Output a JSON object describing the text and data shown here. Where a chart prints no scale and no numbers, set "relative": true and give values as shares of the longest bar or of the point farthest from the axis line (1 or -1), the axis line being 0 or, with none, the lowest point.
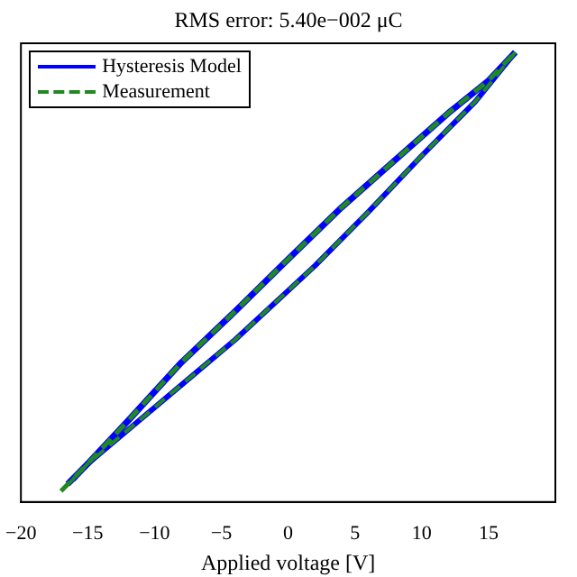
{
  "chart_data": {
    "type": "line",
    "title": "RMS error: 5.40e−002 μC",
    "xlabel": "Applied voltage [V]",
    "relative": true,
    "xlim": [
      -20,
      20
    ],
    "xticks": [
      {
        "value": -20,
        "label": "−20"
      },
      {
        "value": -15,
        "label": "−15"
      },
      {
        "value": -10,
        "label": "−10"
      },
      {
        "value": -5,
        "label": "−5"
      },
      0,
      5,
      10,
      15,
      {
        "value": 20,
        "label": null
      }
    ],
    "grid": false,
    "legend": "top left",
    "marker": "none",
    "series": [
      {
        "name": "Hysteresis Model",
        "color": "#0000ff",
        "line_style": "solid",
        "x": [
          -16.5,
          -15,
          -12,
          -8,
          -4,
          0,
          4,
          8,
          12,
          15,
          17
        ],
        "values": [
          0.04,
          0.085,
          0.18,
          0.31,
          0.423,
          0.54,
          0.655,
          0.76,
          0.865,
          0.937,
          1
        ]
      },
      {
        "color": "#0000ff",
        "line_style": "solid",
        "x": [
          -16.1,
          -15,
          -12,
          -8,
          -4,
          0,
          2,
          6,
          10,
          14,
          17
        ],
        "values": [
          0.05,
          0.085,
          0.16,
          0.26,
          0.36,
          0.47,
          0.525,
          0.645,
          0.77,
          0.89,
          1
        ]
      },
      {
        "name": "Measurement",
        "color": "#1f8a1f",
        "line_style": "dashed",
        "x": [
          -17,
          -15,
          -12,
          -8,
          -4,
          0,
          4,
          8,
          12,
          15,
          17
        ],
        "values": [
          0.024,
          0.085,
          0.18,
          0.31,
          0.423,
          0.54,
          0.655,
          0.76,
          0.865,
          0.937,
          1
        ]
      },
      {
        "color": "#1f8a1f",
        "line_style": "dashed",
        "x": [
          -16.6,
          -15,
          -12,
          -8,
          -4,
          0,
          2,
          6,
          10,
          14,
          17
        ],
        "values": [
          0.035,
          0.085,
          0.16,
          0.26,
          0.36,
          0.47,
          0.525,
          0.645,
          0.77,
          0.89,
          1
        ]
      }
    ]
  }
}
